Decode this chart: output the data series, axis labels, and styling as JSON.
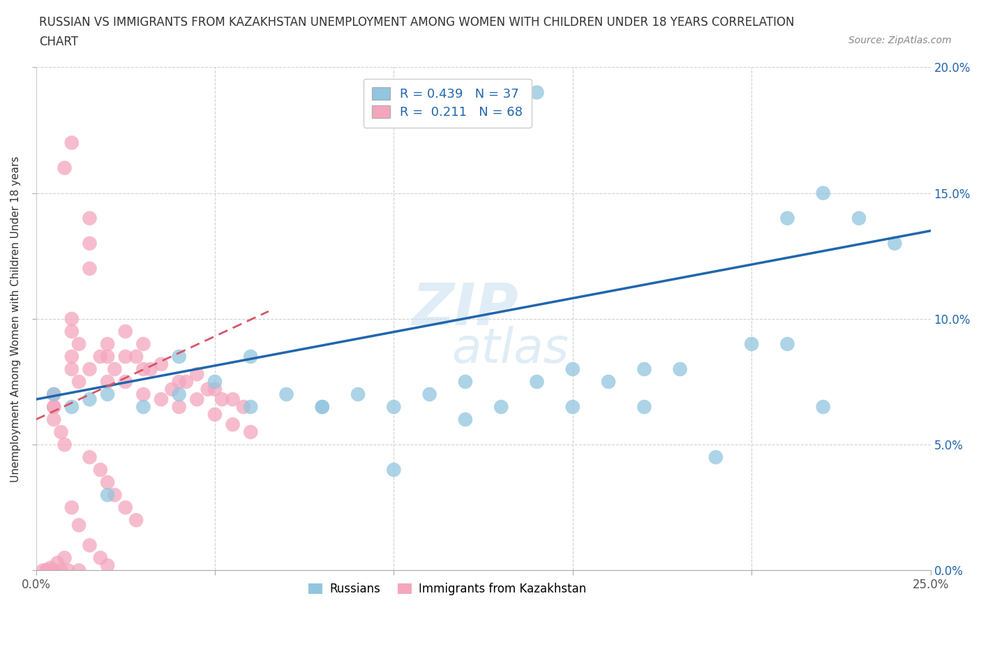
{
  "title_line1": "RUSSIAN VS IMMIGRANTS FROM KAZAKHSTAN UNEMPLOYMENT AMONG WOMEN WITH CHILDREN UNDER 18 YEARS CORRELATION",
  "title_line2": "CHART",
  "source": "Source: ZipAtlas.com",
  "ylabel": "Unemployment Among Women with Children Under 18 years",
  "xlim": [
    0,
    0.25
  ],
  "ylim": [
    0,
    0.2
  ],
  "xticks": [
    0.0,
    0.05,
    0.1,
    0.15,
    0.2,
    0.25
  ],
  "yticks": [
    0.0,
    0.05,
    0.1,
    0.15,
    0.2
  ],
  "watermark_line1": "ZIP",
  "watermark_line2": "atlas",
  "legend_r1": "R = 0.439   N = 37",
  "legend_r2": "R =  0.211   N = 68",
  "blue_scatter_color": "#92c5de",
  "pink_scatter_color": "#f4a6bd",
  "blue_line_color": "#2166ac",
  "pink_line_color": "#d6566a",
  "right_tick_color": "#2166ac",
  "grid_color": "#cccccc",
  "russians_x": [
    0.005,
    0.01,
    0.015,
    0.02,
    0.03,
    0.04,
    0.05,
    0.06,
    0.07,
    0.08,
    0.09,
    0.1,
    0.11,
    0.12,
    0.13,
    0.14,
    0.15,
    0.16,
    0.17,
    0.18,
    0.19,
    0.2,
    0.21,
    0.22,
    0.23,
    0.24,
    0.14,
    0.21,
    0.22,
    0.17,
    0.15,
    0.12,
    0.1,
    0.08,
    0.06,
    0.04,
    0.02
  ],
  "russians_y": [
    0.07,
    0.065,
    0.068,
    0.07,
    0.065,
    0.07,
    0.075,
    0.065,
    0.07,
    0.065,
    0.07,
    0.065,
    0.07,
    0.075,
    0.065,
    0.075,
    0.08,
    0.075,
    0.08,
    0.08,
    0.045,
    0.09,
    0.14,
    0.15,
    0.14,
    0.13,
    0.19,
    0.09,
    0.065,
    0.065,
    0.065,
    0.06,
    0.04,
    0.065,
    0.085,
    0.085,
    0.03
  ],
  "kazakh_x": [
    0.005,
    0.005,
    0.005,
    0.007,
    0.008,
    0.01,
    0.01,
    0.01,
    0.01,
    0.012,
    0.015,
    0.015,
    0.015,
    0.015,
    0.018,
    0.02,
    0.02,
    0.02,
    0.022,
    0.025,
    0.025,
    0.025,
    0.028,
    0.03,
    0.03,
    0.03,
    0.032,
    0.035,
    0.035,
    0.038,
    0.04,
    0.04,
    0.042,
    0.045,
    0.045,
    0.048,
    0.05,
    0.05,
    0.052,
    0.055,
    0.055,
    0.058,
    0.06,
    0.005,
    0.008,
    0.01,
    0.012,
    0.015,
    0.018,
    0.02,
    0.022,
    0.025,
    0.028,
    0.01,
    0.012,
    0.015,
    0.018,
    0.02,
    0.008,
    0.006,
    0.004,
    0.003,
    0.002,
    0.003,
    0.005,
    0.007,
    0.009,
    0.012
  ],
  "kazakh_y": [
    0.07,
    0.065,
    0.06,
    0.055,
    0.05,
    0.1,
    0.095,
    0.085,
    0.08,
    0.09,
    0.14,
    0.13,
    0.12,
    0.08,
    0.085,
    0.09,
    0.085,
    0.075,
    0.08,
    0.095,
    0.085,
    0.075,
    0.085,
    0.09,
    0.08,
    0.07,
    0.08,
    0.082,
    0.068,
    0.072,
    0.075,
    0.065,
    0.075,
    0.078,
    0.068,
    0.072,
    0.072,
    0.062,
    0.068,
    0.068,
    0.058,
    0.065,
    0.055,
    0.065,
    0.16,
    0.17,
    0.075,
    0.045,
    0.04,
    0.035,
    0.03,
    0.025,
    0.02,
    0.025,
    0.018,
    0.01,
    0.005,
    0.002,
    0.005,
    0.003,
    0.001,
    0.0,
    0.0,
    0.0,
    0.0,
    0.0,
    0.0,
    0.0
  ],
  "blue_line_x": [
    0.0,
    0.25
  ],
  "blue_line_y": [
    0.068,
    0.135
  ],
  "pink_line_x": [
    0.0,
    0.065
  ],
  "pink_line_y": [
    0.06,
    0.103
  ]
}
